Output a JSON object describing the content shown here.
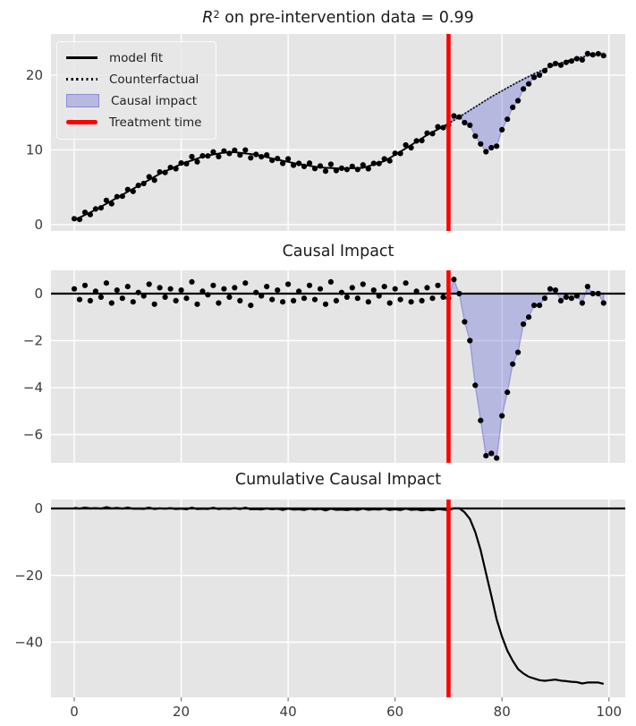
{
  "titles": {
    "panel1_math_base": "R",
    "panel1_math_exp": "2",
    "panel1_rest": " on pre-intervention data = 0.99",
    "panel2": "Causal Impact",
    "panel3": "Cumulative Causal Impact"
  },
  "legend": {
    "items": [
      {
        "label": "model fit",
        "swatch": "solid-black-line"
      },
      {
        "label": "Counterfactual",
        "swatch": "dotted-black-line"
      },
      {
        "label": "Causal impact",
        "swatch": "lavender-patch"
      },
      {
        "label": "Treatment time",
        "swatch": "thick-red-line"
      }
    ]
  },
  "style": {
    "figure_bg": "#ffffff",
    "axes_bg": "#e5e5e5",
    "grid": "#ffffff",
    "tick_color": "#3a3a3a",
    "title_color": "#1b1b1b",
    "dot_color": "#000000",
    "line_color": "#000000",
    "red": "#fe0000",
    "fill": "rgba(95,99,216,0.35)",
    "fill_edge": "rgba(104,108,214,0.55)",
    "tick_mark_color": "#7a7a7a"
  },
  "chart_data": {
    "type": "line",
    "description": "Three stacked panels: observed data vs model fit and counterfactual, pointwise causal impact, cumulative causal impact",
    "x": {
      "start": 0,
      "end": 99,
      "step": 1
    },
    "xlim": [
      -4.35,
      103.05
    ],
    "treatment_time": 70,
    "r_squared_pre_intervention": 0.99,
    "xticks": {
      "values": [
        0,
        20,
        40,
        60,
        80,
        100
      ],
      "labels": [
        "0",
        "20",
        "40",
        "60",
        "80",
        "100"
      ]
    },
    "grid": true,
    "legend_position": "upper-left-panel-1",
    "panels": [
      {
        "title": "R^2 on pre-intervention data = 0.99",
        "ylim": [
          -0.84,
          25.5
        ],
        "yticks": {
          "values": [
            0,
            10,
            20
          ],
          "labels": [
            "0",
            "10",
            "20"
          ]
        },
        "elements": [
          "impact_fill_top",
          "fit_line",
          "counterfactual_line",
          "observed_dots",
          "treatment_vline"
        ]
      },
      {
        "title": "Causal Impact",
        "ylim": [
          -7.2,
          0.99
        ],
        "yticks": {
          "values": [
            0,
            -2,
            -4,
            -6
          ],
          "labels": [
            "0",
            "−2",
            "−4",
            "−6"
          ]
        },
        "elements": [
          "impact_fill_zero",
          "zero_line",
          "pointwise_dots",
          "treatment_vline"
        ]
      },
      {
        "title": "Cumulative Causal Impact",
        "ylim": [
          -56.5,
          2.67
        ],
        "yticks": {
          "values": [
            0,
            -20,
            -40
          ],
          "labels": [
            "0",
            "−20",
            "−40"
          ]
        },
        "elements": [
          "zero_line",
          "cumulative_line",
          "treatment_vline"
        ]
      }
    ],
    "series": {
      "curve": [
        0.6,
        0.95,
        1.3,
        1.65,
        2.0,
        2.4,
        2.8,
        3.2,
        3.6,
        4.0,
        4.4,
        4.8,
        5.2,
        5.6,
        6.0,
        6.4,
        6.8,
        7.13,
        7.45,
        7.78,
        8.1,
        8.35,
        8.6,
        8.85,
        9.1,
        9.24,
        9.38,
        9.51,
        9.65,
        9.68,
        9.7,
        9.61,
        9.53,
        9.44,
        9.35,
        9.19,
        9.03,
        8.86,
        8.7,
        8.55,
        8.4,
        8.25,
        8.1,
        7.99,
        7.88,
        7.76,
        7.65,
        7.61,
        7.58,
        7.54,
        7.5,
        7.53,
        7.55,
        7.58,
        7.6,
        7.83,
        8.05,
        8.28,
        8.5,
        8.93,
        9.35,
        9.78,
        10.2,
        10.65,
        11.1,
        11.55,
        12.0,
        12.38,
        12.75,
        13.13,
        13.5,
        13.95,
        14.4,
        14.85,
        15.3,
        15.75,
        16.2,
        16.65,
        17.1,
        17.5,
        17.9,
        18.3,
        18.7,
        19.08,
        19.45,
        19.83,
        20.2,
        20.5,
        20.8,
        21.1,
        21.4,
        21.63,
        21.85,
        22.08,
        22.3,
        22.44,
        22.58,
        22.72,
        22.86,
        23.0
      ],
      "observed": [
        0.8,
        0.7,
        1.65,
        1.35,
        2.1,
        2.25,
        3.25,
        2.8,
        3.75,
        3.8,
        4.7,
        4.45,
        5.25,
        5.5,
        6.4,
        5.95,
        7.05,
        6.98,
        7.65,
        7.48,
        8.25,
        8.15,
        9.1,
        8.4,
        9.2,
        9.19,
        9.73,
        9.11,
        9.85,
        9.53,
        9.95,
        9.31,
        9.98,
        8.94,
        9.4,
        9.09,
        9.33,
        8.61,
        8.85,
        8.2,
        8.8,
        7.95,
        8.2,
        7.79,
        8.23,
        7.51,
        7.85,
        7.16,
        8.08,
        7.24,
        7.55,
        7.38,
        7.8,
        7.38,
        8.0,
        7.48,
        8.2,
        8.18,
        8.8,
        8.53,
        9.55,
        9.53,
        10.65,
        10.3,
        11.2,
        11.25,
        12.25,
        12.18,
        13.1,
        12.98,
        13.3,
        14.55,
        14.4,
        13.65,
        13.3,
        11.85,
        10.8,
        9.75,
        10.3,
        10.5,
        12.7,
        14.1,
        15.7,
        16.58,
        18.15,
        18.83,
        19.7,
        20.0,
        20.6,
        21.3,
        21.55,
        21.33,
        21.7,
        21.88,
        22.2,
        22.04,
        22.88,
        22.72,
        22.86,
        22.6
      ],
      "pointwise": [
        0.2,
        -0.25,
        0.35,
        -0.3,
        0.1,
        -0.15,
        0.45,
        -0.4,
        0.15,
        -0.2,
        0.3,
        -0.35,
        0.05,
        -0.1,
        0.4,
        -0.45,
        0.25,
        -0.15,
        0.2,
        -0.3,
        0.15,
        -0.2,
        0.5,
        -0.45,
        0.1,
        -0.05,
        0.35,
        -0.4,
        0.2,
        -0.15,
        0.25,
        -0.3,
        0.45,
        -0.5,
        0.05,
        -0.1,
        0.3,
        -0.25,
        0.15,
        -0.35,
        0.4,
        -0.3,
        0.1,
        -0.2,
        0.35,
        -0.25,
        0.2,
        -0.45,
        0.5,
        -0.3,
        0.05,
        -0.15,
        0.25,
        -0.2,
        0.4,
        -0.35,
        0.15,
        -0.1,
        0.3,
        -0.4,
        0.2,
        -0.25,
        0.45,
        -0.35,
        0.1,
        -0.3,
        0.25,
        -0.2,
        0.35,
        -0.15,
        -0.2,
        0.6,
        0.0,
        -1.2,
        -2.0,
        -3.9,
        -5.4,
        -6.9,
        -6.8,
        -7.0,
        -5.2,
        -4.2,
        -3.0,
        -2.5,
        -1.3,
        -1.0,
        -0.5,
        -0.5,
        -0.2,
        0.2,
        0.15,
        -0.3,
        -0.15,
        -0.2,
        -0.1,
        -0.4,
        0.3,
        0.0,
        0.0,
        -0.4
      ],
      "cumulative": [
        0.2,
        -0.05,
        0.3,
        0.0,
        0.1,
        -0.05,
        0.4,
        0.0,
        0.15,
        -0.05,
        0.25,
        -0.1,
        -0.05,
        -0.15,
        0.25,
        -0.2,
        0.05,
        -0.1,
        0.1,
        -0.2,
        -0.05,
        -0.25,
        0.25,
        -0.2,
        -0.1,
        -0.15,
        0.2,
        -0.2,
        0.0,
        -0.15,
        0.1,
        -0.2,
        0.25,
        -0.25,
        -0.2,
        -0.3,
        0.0,
        -0.25,
        -0.1,
        -0.45,
        -0.05,
        -0.35,
        -0.25,
        -0.45,
        -0.1,
        -0.35,
        -0.15,
        -0.6,
        -0.1,
        -0.4,
        -0.35,
        -0.5,
        -0.25,
        -0.45,
        -0.05,
        -0.4,
        -0.25,
        -0.35,
        -0.05,
        -0.45,
        -0.25,
        -0.5,
        -0.05,
        -0.4,
        -0.3,
        -0.6,
        -0.35,
        -0.55,
        -0.2,
        -0.35,
        -0.55,
        0.05,
        0.05,
        -1.15,
        -3.15,
        -7.05,
        -12.45,
        -19.35,
        -26.15,
        -33.15,
        -38.35,
        -42.55,
        -45.55,
        -48.05,
        -49.35,
        -50.35,
        -50.85,
        -51.35,
        -51.55,
        -51.35,
        -51.2,
        -51.5,
        -51.65,
        -51.85,
        -51.95,
        -52.35,
        -52.05,
        -52.05,
        -52.05,
        -52.45
      ]
    }
  }
}
